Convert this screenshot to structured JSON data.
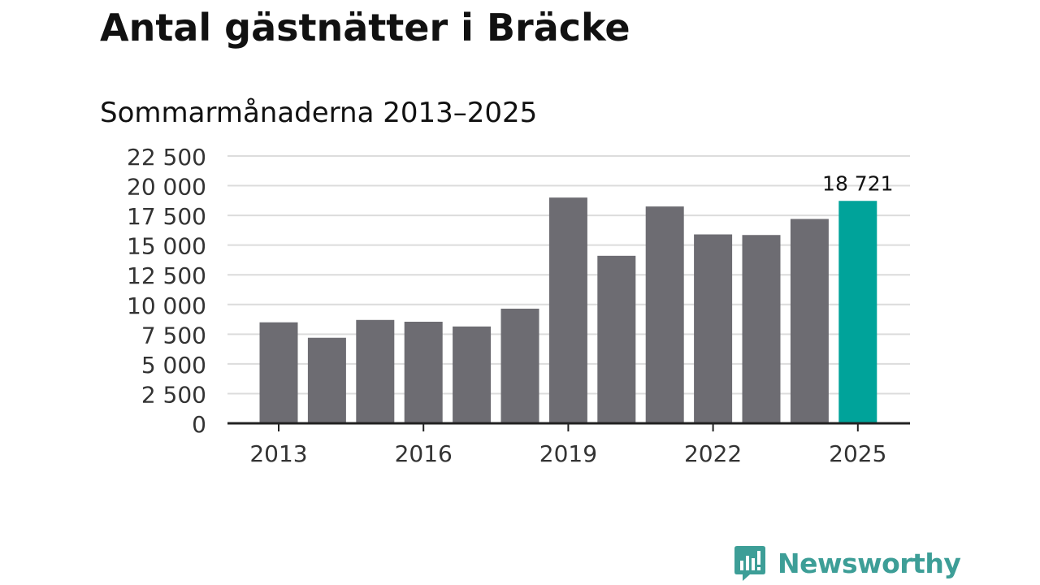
{
  "title": "Antal gästnätter i Bräcke",
  "subtitle": "Sommarmånaderna 2013–2025",
  "brand": {
    "name": "Newsworthy",
    "icon": "newsworthy-logo-icon",
    "color": "#3d9e97"
  },
  "chart_data": {
    "type": "bar",
    "title": "Antal gästnätter i Bräcke",
    "subtitle": "Sommarmånaderna 2013–2025",
    "categories": [
      "2013",
      "2014",
      "2015",
      "2016",
      "2017",
      "2018",
      "2019",
      "2020",
      "2021",
      "2022",
      "2023",
      "2024",
      "2025"
    ],
    "values": [
      8500,
      7200,
      8700,
      8550,
      8150,
      9650,
      19000,
      14100,
      18250,
      15900,
      15850,
      17200,
      18721
    ],
    "xlabel": "",
    "ylabel": "",
    "ylim": [
      0,
      22500
    ],
    "yticks": [
      0,
      2500,
      5000,
      7500,
      10000,
      12500,
      15000,
      17500,
      20000,
      22500
    ],
    "ytick_labels": [
      "0",
      "2 500",
      "5 000",
      "7 500",
      "10 000",
      "12 500",
      "15 000",
      "17 500",
      "20 000",
      "22 500"
    ],
    "xtick_labels": [
      "2013",
      "2016",
      "2019",
      "2022",
      "2025"
    ],
    "highlight_index": 12,
    "highlight_label": "18 721",
    "bar_color": "#6d6c72",
    "highlight_color": "#00a39a",
    "grid": true
  }
}
